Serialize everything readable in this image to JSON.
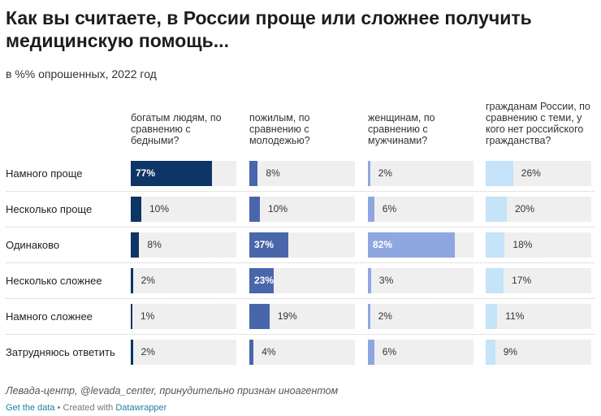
{
  "title": "Как вы считаете, в России проще или сложнее получить медицинскую помощь...",
  "subtitle": "в %% опрошенных, 2022 год",
  "source": "Левада-центр, @levada_center, принудительно признан иноагентом",
  "footer": {
    "get_data": "Get the data",
    "separator": "•",
    "created_with": "Created with",
    "tool": "Datawrapper"
  },
  "colors": {
    "col1": "#0d3565",
    "col2": "#4a66ab",
    "col3": "#8ea7e0",
    "col4": "#c5e3f9",
    "track": "#efefef"
  },
  "chart_data": {
    "type": "bar",
    "title": "Как вы считаете, в России проще или сложнее получить медицинскую помощь...",
    "subtitle": "в %% опрошенных, 2022 год",
    "unit": "%",
    "xlim": [
      0,
      100
    ],
    "categories": [
      "Намного проще",
      "Несколько проще",
      "Одинаково",
      "Несколько сложнее",
      "Намного сложнее",
      "Затрудняюсь ответить"
    ],
    "series": [
      {
        "name": "богатым людям, по сравнению с бедными?",
        "values": [
          77,
          10,
          8,
          2,
          1,
          2
        ]
      },
      {
        "name": "пожилым, по сравнению с молодежью?",
        "values": [
          8,
          10,
          37,
          23,
          19,
          4
        ]
      },
      {
        "name": "женщинам, по сравнению с мужчинами?",
        "values": [
          2,
          6,
          82,
          3,
          2,
          6
        ]
      },
      {
        "name": "гражданам России, по сравнению с теми, у кого нет российского гражданства?",
        "values": [
          26,
          20,
          18,
          17,
          11,
          9
        ]
      }
    ]
  }
}
